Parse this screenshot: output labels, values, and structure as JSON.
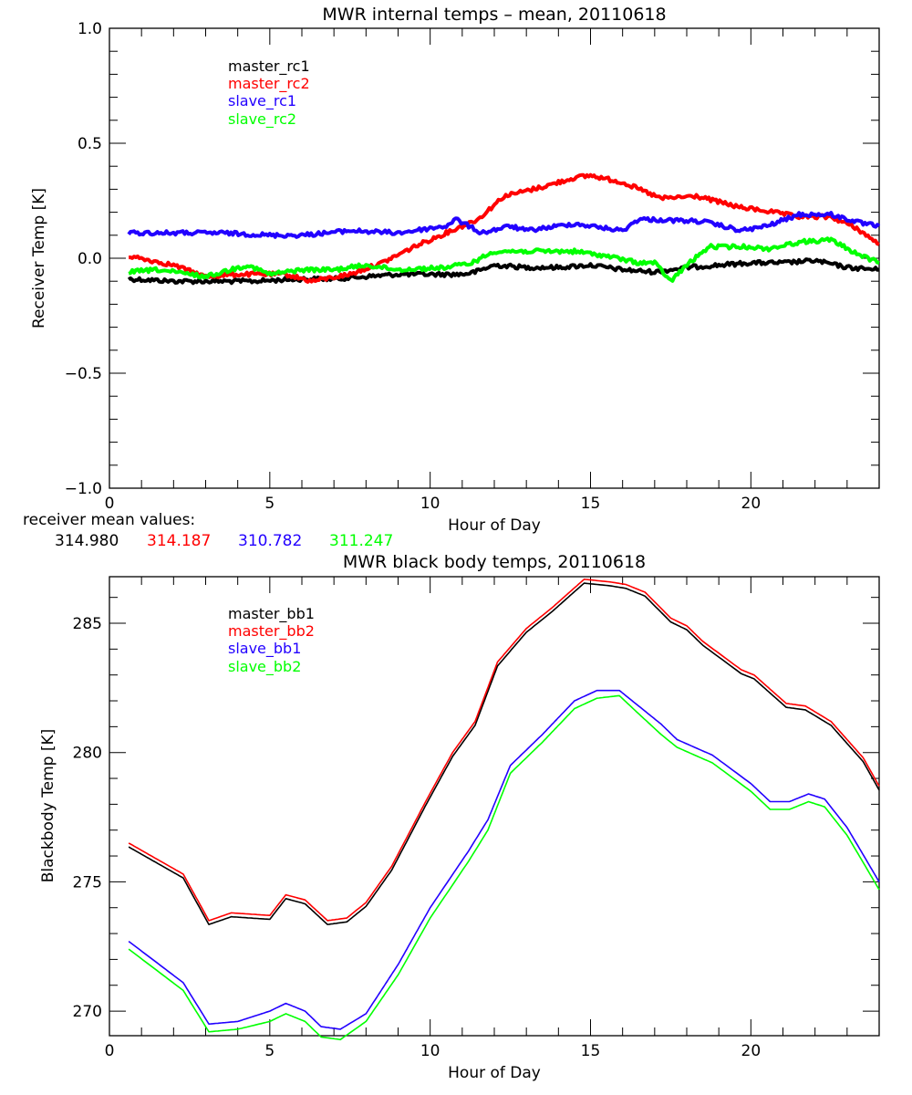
{
  "chart_data": [
    {
      "type": "line",
      "title": "MWR internal temps – mean, 20110618",
      "xlabel": "Hour of Day",
      "ylabel": "Receiver Temp [K]",
      "xlim": [
        0,
        24
      ],
      "ylim": [
        -1.0,
        1.0
      ],
      "xticks": [
        0,
        5,
        10,
        15,
        20
      ],
      "xtick_labels": [
        "0",
        "5",
        "10",
        "15",
        "20"
      ],
      "xminor_step": 1,
      "yticks": [
        -1.0,
        -0.5,
        0.0,
        0.5,
        1.0
      ],
      "ytick_labels": [
        "−1.0",
        "−0.5",
        "0.0",
        "0.5",
        "1.0"
      ],
      "yminor_step": 0.1,
      "grid": false,
      "legend_position": "top-left",
      "series": [
        {
          "name": "master_rc1",
          "color": "#000000",
          "x": [
            0.6,
            2,
            3,
            4.5,
            6,
            7,
            8,
            9,
            10,
            11,
            11.4,
            12,
            13,
            14,
            15,
            15.5,
            16,
            17,
            18,
            19,
            20,
            21,
            22,
            23,
            24
          ],
          "y": [
            -0.09,
            -0.1,
            -0.1,
            -0.1,
            -0.09,
            -0.09,
            -0.08,
            -0.07,
            -0.07,
            -0.07,
            -0.06,
            -0.03,
            -0.04,
            -0.04,
            -0.03,
            -0.04,
            -0.05,
            -0.06,
            -0.04,
            -0.03,
            -0.02,
            -0.02,
            -0.01,
            -0.04,
            -0.05
          ]
        },
        {
          "name": "master_rc2",
          "color": "#ff0000",
          "x": [
            0.6,
            2,
            3,
            4,
            5.5,
            6.3,
            7.5,
            8.5,
            9.5,
            10.5,
            11.5,
            12.3,
            13.5,
            14.5,
            15,
            16,
            17.2,
            18.3,
            19.7,
            20.3,
            21.5,
            22.5,
            23.3,
            24
          ],
          "y": [
            0.01,
            -0.03,
            -0.08,
            -0.07,
            -0.07,
            -0.1,
            -0.07,
            -0.02,
            0.05,
            0.11,
            0.17,
            0.27,
            0.31,
            0.35,
            0.36,
            0.33,
            0.26,
            0.27,
            0.22,
            0.21,
            0.18,
            0.18,
            0.13,
            0.06
          ]
        },
        {
          "name": "slave_rc1",
          "color": "#2200ff",
          "x": [
            0.6,
            2,
            3.5,
            5,
            6,
            7.5,
            9,
            9.5,
            10.5,
            10.8,
            11.6,
            12.5,
            13,
            14.5,
            16,
            16.5,
            18.5,
            19.7,
            20.5,
            21.5,
            22.5,
            23.5,
            24
          ],
          "y": [
            0.11,
            0.11,
            0.11,
            0.1,
            0.1,
            0.12,
            0.11,
            0.12,
            0.14,
            0.17,
            0.11,
            0.14,
            0.12,
            0.15,
            0.12,
            0.17,
            0.16,
            0.12,
            0.14,
            0.19,
            0.19,
            0.15,
            0.14
          ]
        },
        {
          "name": "slave_rc2",
          "color": "#00ff00",
          "x": [
            0.6,
            1.5,
            3,
            4.3,
            5,
            6,
            7,
            8,
            9,
            10.5,
            11.3,
            12,
            14.5,
            15.5,
            16.5,
            17,
            17.5,
            18,
            18.7,
            20,
            20.5,
            21.5,
            22.5,
            23.3,
            24
          ],
          "y": [
            -0.06,
            -0.05,
            -0.08,
            -0.03,
            -0.07,
            -0.05,
            -0.05,
            -0.03,
            -0.05,
            -0.04,
            -0.02,
            0.03,
            0.03,
            0.01,
            -0.02,
            -0.02,
            -0.1,
            -0.03,
            0.05,
            0.05,
            0.04,
            0.07,
            0.08,
            0.02,
            -0.02
          ]
        }
      ],
      "annotation": {
        "label": "receiver mean values:",
        "values": [
          {
            "text": "314.980",
            "color": "#000000"
          },
          {
            "text": "314.187",
            "color": "#ff0000"
          },
          {
            "text": "310.782",
            "color": "#2200ff"
          },
          {
            "text": "311.247",
            "color": "#00ff00"
          }
        ]
      }
    },
    {
      "type": "line",
      "title": "MWR black body temps, 20110618",
      "xlabel": "Hour of Day",
      "ylabel": "Blackbody Temp [K]",
      "xlim": [
        0,
        24
      ],
      "ylim": [
        269.05,
        286.8
      ],
      "xticks": [
        0,
        5,
        10,
        15,
        20
      ],
      "xtick_labels": [
        "0",
        "5",
        "10",
        "15",
        "20"
      ],
      "xminor_step": 1,
      "yticks": [
        270,
        275,
        280,
        285
      ],
      "ytick_labels": [
        "270",
        "275",
        "280",
        "285"
      ],
      "yminor_step": 1,
      "grid": false,
      "legend_position": "top-left",
      "series": [
        {
          "name": "master_bb1",
          "color": "#000000",
          "x": [
            0.6,
            2.3,
            3.1,
            3.8,
            5,
            5.5,
            6.1,
            6.8,
            7.4,
            8,
            8.8,
            9.9,
            10.7,
            11.4,
            12.1,
            13,
            13.8,
            14.8,
            15.6,
            16.1,
            16.7,
            17.5,
            18,
            18.5,
            19.7,
            20.1,
            21.1,
            21.7,
            22.5,
            23.5,
            24
          ],
          "y": [
            276.35,
            275.15,
            273.35,
            273.65,
            273.55,
            274.35,
            274.15,
            273.35,
            273.45,
            274.05,
            275.45,
            278.05,
            279.85,
            281.05,
            283.35,
            284.65,
            285.45,
            286.55,
            286.45,
            286.35,
            286.05,
            285.05,
            284.75,
            284.15,
            283.05,
            282.85,
            281.75,
            281.65,
            281.05,
            279.65,
            278.55
          ]
        },
        {
          "name": "master_bb2",
          "color": "#ff0000",
          "x": [
            0.6,
            2.3,
            3.1,
            3.8,
            5,
            5.5,
            6.1,
            6.8,
            7.4,
            8,
            8.8,
            9.9,
            10.7,
            11.4,
            12.1,
            13,
            13.8,
            14.8,
            15.6,
            16.1,
            16.7,
            17.5,
            18,
            18.5,
            19.7,
            20.1,
            21.1,
            21.7,
            22.5,
            23.5,
            24
          ],
          "y": [
            276.5,
            275.3,
            273.5,
            273.8,
            273.7,
            274.5,
            274.3,
            273.5,
            273.6,
            274.2,
            275.6,
            278.2,
            280.0,
            281.2,
            283.5,
            284.8,
            285.6,
            286.7,
            286.6,
            286.5,
            286.2,
            285.2,
            284.9,
            284.3,
            283.2,
            283.0,
            281.9,
            281.8,
            281.2,
            279.8,
            278.7
          ]
        },
        {
          "name": "slave_bb1",
          "color": "#2200ff",
          "x": [
            0.6,
            2.3,
            3.1,
            4,
            5,
            5.5,
            6.1,
            6.6,
            7.2,
            8,
            9,
            10,
            11.2,
            11.8,
            12.5,
            13.5,
            14.5,
            15.2,
            15.9,
            16.5,
            17.2,
            17.7,
            18.8,
            20,
            20.6,
            21.2,
            21.8,
            22.3,
            23,
            24
          ],
          "y": [
            272.7,
            271.1,
            269.5,
            269.6,
            270.0,
            270.3,
            270.0,
            269.4,
            269.3,
            269.9,
            271.8,
            274.0,
            276.2,
            277.4,
            279.5,
            280.7,
            282.0,
            282.4,
            282.4,
            281.8,
            281.1,
            280.5,
            279.9,
            278.8,
            278.1,
            278.1,
            278.4,
            278.2,
            277.1,
            275.0
          ]
        },
        {
          "name": "slave_bb2",
          "color": "#00ff00",
          "x": [
            0.6,
            2.3,
            3.1,
            4,
            5,
            5.5,
            6.1,
            6.6,
            7.2,
            8,
            9,
            10,
            11.2,
            11.8,
            12.5,
            13.5,
            14.5,
            15.2,
            15.9,
            16.5,
            17.2,
            17.7,
            18.8,
            20,
            20.6,
            21.2,
            21.8,
            22.3,
            23,
            24
          ],
          "y": [
            272.4,
            270.8,
            269.2,
            269.3,
            269.6,
            269.9,
            269.6,
            269.0,
            268.9,
            269.6,
            271.4,
            273.6,
            275.8,
            277.0,
            279.2,
            280.4,
            281.7,
            282.1,
            282.2,
            281.5,
            280.7,
            280.2,
            279.6,
            278.5,
            277.8,
            277.8,
            278.1,
            277.9,
            276.8,
            274.7
          ]
        }
      ]
    }
  ]
}
